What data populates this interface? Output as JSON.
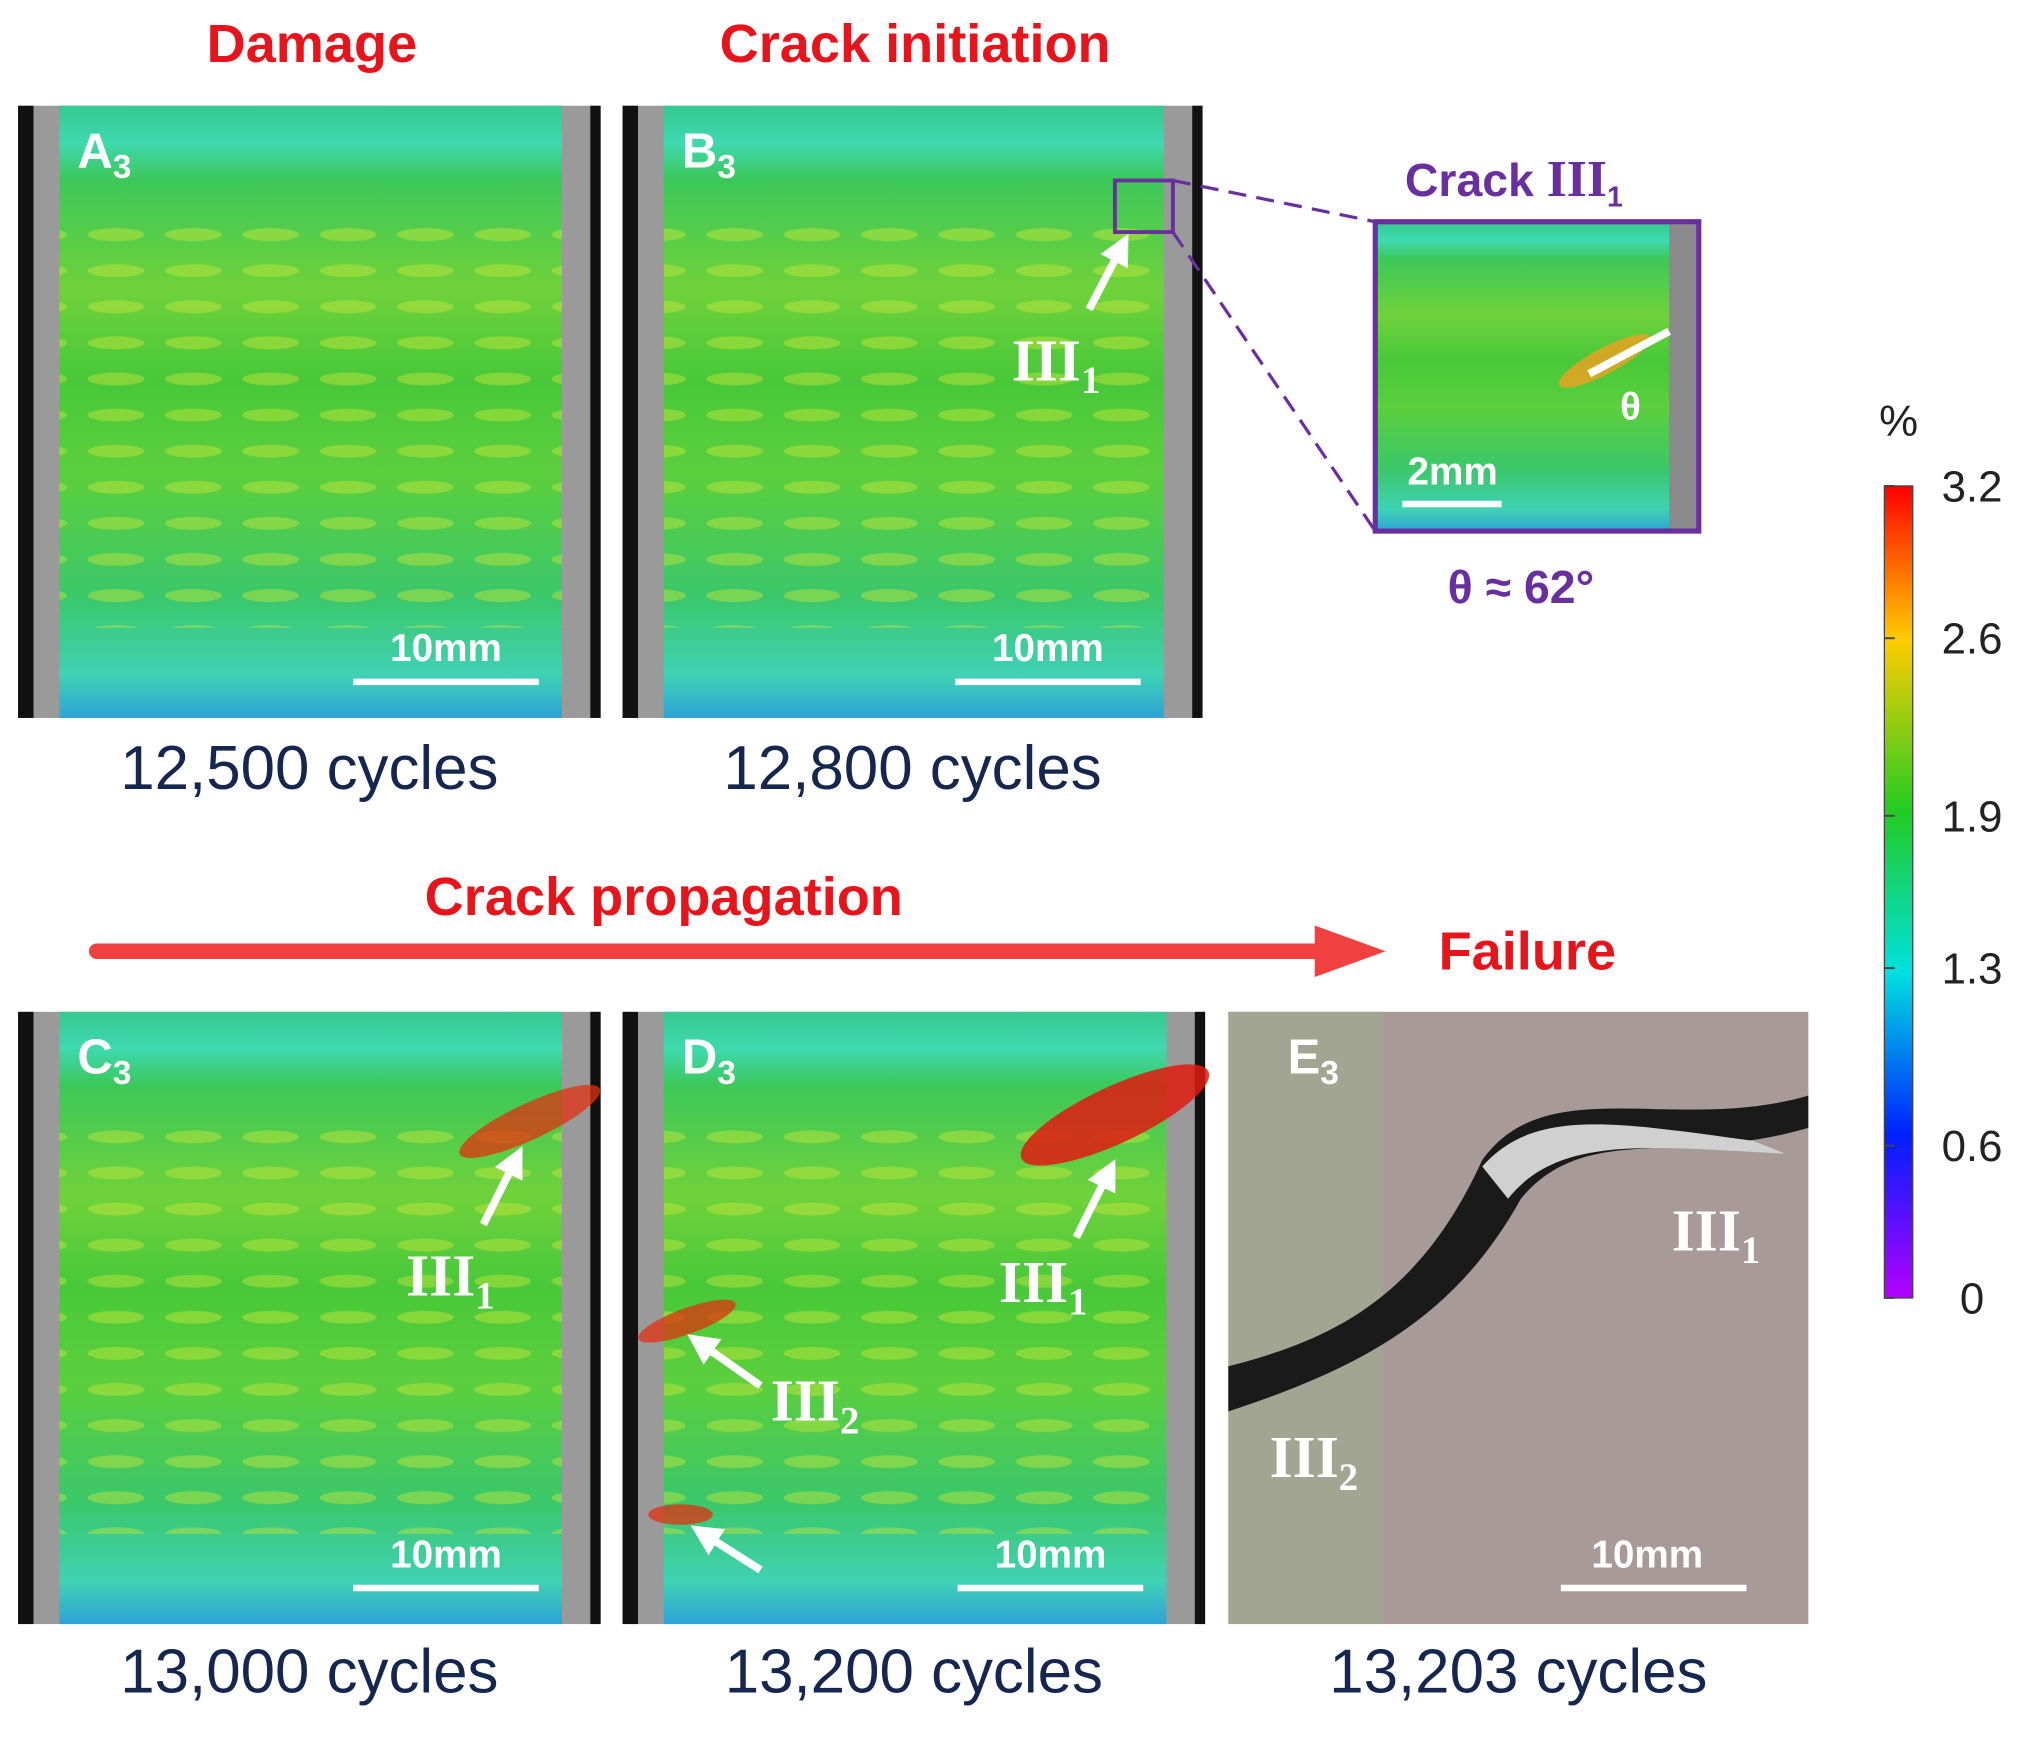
{
  "headers": {
    "damage": "Damage",
    "initiation": "Crack initiation",
    "propagation": "Crack propagation",
    "failure": "Failure"
  },
  "panels": [
    {
      "letter": "A",
      "sub": "3",
      "scale": "10mm",
      "cycles": "12,500 cycles"
    },
    {
      "letter": "B",
      "sub": "3",
      "scale": "10mm",
      "cycles": "12,800 cycles",
      "cracks": [
        {
          "roman": "III",
          "sub": "1"
        }
      ]
    },
    {
      "letter": "C",
      "sub": "3",
      "scale": "10mm",
      "cycles": "13,000 cycles",
      "cracks": [
        {
          "roman": "III",
          "sub": "1"
        }
      ]
    },
    {
      "letter": "D",
      "sub": "3",
      "scale": "10mm",
      "cycles": "13,200 cycles",
      "cracks": [
        {
          "roman": "III",
          "sub": "1"
        },
        {
          "roman": "III",
          "sub": "2"
        }
      ]
    },
    {
      "letter": "E",
      "sub": "3",
      "scale": "10mm",
      "cycles": "13,203 cycles",
      "cracks": [
        {
          "roman": "III",
          "sub": "1"
        },
        {
          "roman": "III",
          "sub": "2"
        }
      ]
    }
  ],
  "inset": {
    "title": "Crack",
    "roman": "III",
    "sub": "1",
    "angle_symbol": "θ",
    "scale": "2mm",
    "angle": "θ ≈ 62°"
  },
  "colorbar": {
    "unit": "%",
    "lim": [
      0,
      3.2
    ],
    "ticks": [
      3.2,
      2.6,
      1.9,
      1.3,
      0.6,
      0
    ]
  }
}
